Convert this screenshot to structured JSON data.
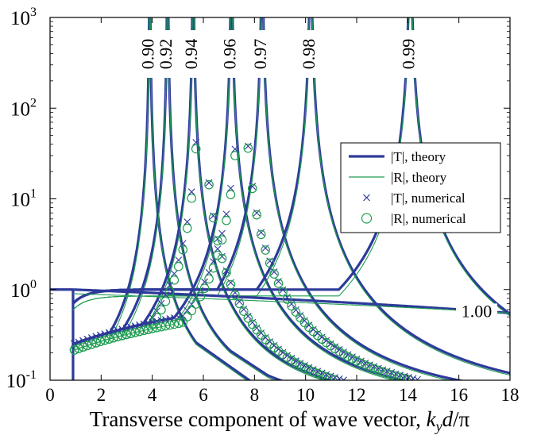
{
  "chart_data": {
    "type": "line",
    "xlabel_prefix": "Transverse component of wave vector, ",
    "xlabel_var": "k",
    "xlabel_sub": "y",
    "xlabel_suffix_var": "d",
    "xlabel_suffix": "/π",
    "ylabel": "",
    "xlim": [
      0,
      18
    ],
    "ylim": [
      0.1,
      1000
    ],
    "yscale": "log",
    "x_ticks": [
      "0",
      "2",
      "4",
      "6",
      "8",
      "10",
      "12",
      "14",
      "16",
      "18"
    ],
    "y_ticks": [
      {
        "base": "10",
        "exp": "-1",
        "value": 0.1
      },
      {
        "base": "10",
        "exp": "0",
        "value": 1
      },
      {
        "base": "10",
        "exp": "1",
        "value": 10
      },
      {
        "base": "10",
        "exp": "2",
        "value": 100
      },
      {
        "base": "10",
        "exp": "3",
        "value": 1000
      }
    ],
    "colors": {
      "theory_T": "#2e3a9a",
      "theory_R": "#1e9e50",
      "frame": "#000000"
    },
    "resonance_curves": [
      {
        "label": "0.90",
        "x_peak": 3.9
      },
      {
        "label": "0.92",
        "x_peak": 4.6
      },
      {
        "label": "0.94",
        "x_peak": 5.6
      },
      {
        "label": "0.96",
        "x_peak": 7.1
      },
      {
        "label": "0.97",
        "x_peak": 8.3
      },
      {
        "label": "0.98",
        "x_peak": 10.2
      },
      {
        "label": "0.99",
        "x_peak": 14.1
      }
    ],
    "flat_curve_label": "1.00",
    "numerical_series_peaks": [
      5.9,
      7.5
    ],
    "legend": {
      "position": "center-right",
      "entries": [
        {
          "label": "|T|, theory",
          "marker": "thick-line"
        },
        {
          "label": "|R|, theory",
          "marker": "thin-line"
        },
        {
          "label": "|T|, numerical",
          "marker": "x"
        },
        {
          "label": "|R|, numerical",
          "marker": "o"
        }
      ]
    },
    "grid": false
  }
}
